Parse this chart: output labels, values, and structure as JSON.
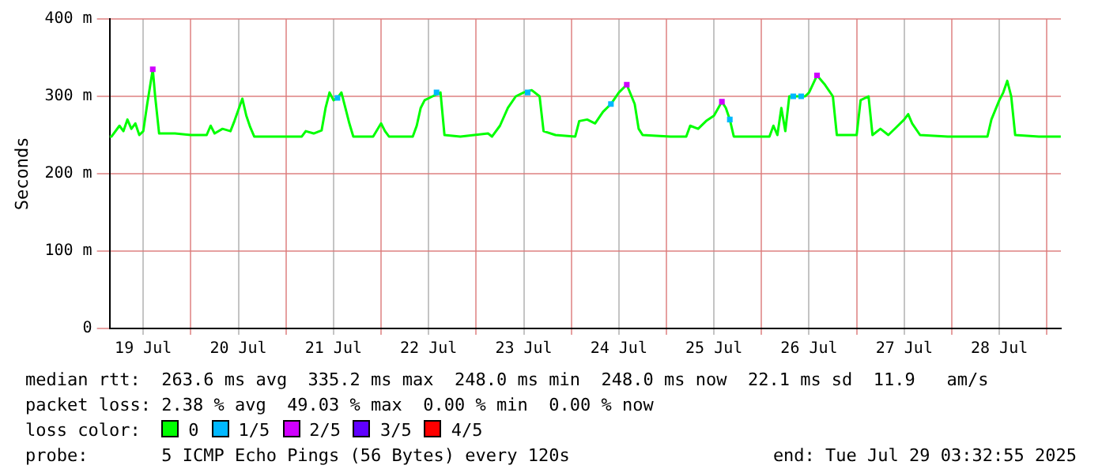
{
  "chart_data": {
    "type": "line",
    "ylabel": "Seconds",
    "legend_title": "loss color:",
    "legend": "bottom",
    "grid": true,
    "marker": "none",
    "line_style": "solid",
    "xlim": [
      "2025-07-19T03:30",
      "2025-07-29T03:32"
    ],
    "xticks": [
      {
        "value": "2025-07-19T12:00",
        "label": "19 Jul"
      },
      {
        "value": "2025-07-20T00:00",
        "label": null
      },
      {
        "value": "2025-07-20T12:00",
        "label": "20 Jul"
      },
      {
        "value": "2025-07-21T00:00",
        "label": null
      },
      {
        "value": "2025-07-21T12:00",
        "label": "21 Jul"
      },
      {
        "value": "2025-07-22T00:00",
        "label": null
      },
      {
        "value": "2025-07-22T12:00",
        "label": "22 Jul"
      },
      {
        "value": "2025-07-23T00:00",
        "label": null
      },
      {
        "value": "2025-07-23T12:00",
        "label": "23 Jul"
      },
      {
        "value": "2025-07-24T00:00",
        "label": null
      },
      {
        "value": "2025-07-24T12:00",
        "label": "24 Jul"
      },
      {
        "value": "2025-07-25T00:00",
        "label": null
      },
      {
        "value": "2025-07-25T12:00",
        "label": "25 Jul"
      },
      {
        "value": "2025-07-26T00:00",
        "label": null
      },
      {
        "value": "2025-07-26T12:00",
        "label": "26 Jul"
      },
      {
        "value": "2025-07-27T00:00",
        "label": null
      },
      {
        "value": "2025-07-27T12:00",
        "label": "27 Jul"
      },
      {
        "value": "2025-07-28T00:00",
        "label": null
      },
      {
        "value": "2025-07-28T12:00",
        "label": "28 Jul"
      },
      {
        "value": "2025-07-29T00:00",
        "label": null
      }
    ],
    "ylim": [
      0,
      400
    ],
    "yticks": [
      0,
      {
        "value": 100,
        "label": "100 m"
      },
      {
        "value": 200,
        "label": "200 m"
      },
      {
        "value": 300,
        "label": "300 m"
      },
      {
        "value": 400,
        "label": "400 m"
      }
    ],
    "series": [
      {
        "name": "0",
        "color": "#00ff00",
        "x": [
          "2025-07-19T03:30",
          "2025-07-19T04:00",
          "2025-07-19T06:00",
          "2025-07-19T07:00",
          "2025-07-19T08:00",
          "2025-07-19T09:00",
          "2025-07-19T10:00",
          "2025-07-19T11:00",
          "2025-07-19T12:00",
          "2025-07-19T13:00",
          "2025-07-19T14:24",
          "2025-07-19T15:00",
          "2025-07-19T16:00",
          "2025-07-19T20:00",
          "2025-07-20T00:00",
          "2025-07-20T04:00",
          "2025-07-20T05:00",
          "2025-07-20T06:00",
          "2025-07-20T08:00",
          "2025-07-20T10:00",
          "2025-07-20T11:00",
          "2025-07-20T13:00",
          "2025-07-20T14:00",
          "2025-07-20T15:00",
          "2025-07-20T16:00",
          "2025-07-20T22:00",
          "2025-07-21T04:00",
          "2025-07-21T05:00",
          "2025-07-21T07:00",
          "2025-07-21T09:00",
          "2025-07-21T10:00",
          "2025-07-21T11:00",
          "2025-07-21T12:00",
          "2025-07-21T13:00",
          "2025-07-21T14:00",
          "2025-07-21T15:00",
          "2025-07-21T16:00",
          "2025-07-21T17:00",
          "2025-07-21T22:00",
          "2025-07-22T00:00",
          "2025-07-22T01:00",
          "2025-07-22T02:00",
          "2025-07-22T08:00",
          "2025-07-22T09:00",
          "2025-07-22T10:00",
          "2025-07-22T11:00",
          "2025-07-22T13:00",
          "2025-07-22T15:00",
          "2025-07-22T16:00",
          "2025-07-22T20:00",
          "2025-07-23T03:00",
          "2025-07-23T04:00",
          "2025-07-23T06:00",
          "2025-07-23T08:00",
          "2025-07-23T10:00",
          "2025-07-23T12:00",
          "2025-07-23T14:00",
          "2025-07-23T16:00",
          "2025-07-23T17:00",
          "2025-07-23T20:00",
          "2025-07-24T01:00",
          "2025-07-24T02:00",
          "2025-07-24T04:00",
          "2025-07-24T06:00",
          "2025-07-24T08:00",
          "2025-07-24T10:00",
          "2025-07-24T12:00",
          "2025-07-24T14:00",
          "2025-07-24T16:00",
          "2025-07-24T17:00",
          "2025-07-24T18:00",
          "2025-07-25T01:00",
          "2025-07-25T05:00",
          "2025-07-25T06:00",
          "2025-07-25T08:00",
          "2025-07-25T10:00",
          "2025-07-25T12:00",
          "2025-07-25T14:00",
          "2025-07-25T15:00",
          "2025-07-25T16:00",
          "2025-07-25T17:00",
          "2025-07-25T22:00",
          "2025-07-26T02:00",
          "2025-07-26T03:00",
          "2025-07-26T04:00",
          "2025-07-26T05:00",
          "2025-07-26T06:00",
          "2025-07-26T07:00",
          "2025-07-26T09:00",
          "2025-07-26T11:00",
          "2025-07-26T12:00",
          "2025-07-26T14:00",
          "2025-07-26T16:00",
          "2025-07-26T18:00",
          "2025-07-26T19:00",
          "2025-07-26T22:00",
          "2025-07-27T00:00",
          "2025-07-27T01:00",
          "2025-07-27T03:00",
          "2025-07-27T04:00",
          "2025-07-27T06:00",
          "2025-07-27T08:00",
          "2025-07-27T10:00",
          "2025-07-27T12:00",
          "2025-07-27T13:00",
          "2025-07-27T14:00",
          "2025-07-27T16:00",
          "2025-07-27T23:00",
          "2025-07-28T09:00",
          "2025-07-28T10:00",
          "2025-07-28T12:00",
          "2025-07-28T13:00",
          "2025-07-28T14:00",
          "2025-07-28T15:00",
          "2025-07-28T16:00",
          "2025-07-28T22:00",
          "2025-07-29T03:30"
        ],
        "values": [
          248,
          248,
          262,
          255,
          270,
          258,
          265,
          250,
          255,
          290,
          335,
          300,
          252,
          252,
          250,
          250,
          262,
          252,
          258,
          255,
          268,
          297,
          275,
          260,
          248,
          248,
          248,
          255,
          252,
          256,
          285,
          305,
          295,
          298,
          305,
          285,
          265,
          248,
          248,
          265,
          255,
          248,
          248,
          262,
          285,
          295,
          300,
          305,
          250,
          248,
          252,
          248,
          262,
          285,
          300,
          305,
          308,
          300,
          255,
          250,
          248,
          268,
          270,
          265,
          280,
          290,
          305,
          315,
          290,
          258,
          250,
          248,
          248,
          262,
          258,
          268,
          275,
          293,
          285,
          270,
          248,
          248,
          248,
          262,
          250,
          285,
          255,
          300,
          300,
          300,
          305,
          327,
          315,
          300,
          250,
          250,
          250,
          295,
          300,
          250,
          258,
          250,
          260,
          270,
          277,
          265,
          250,
          248,
          248,
          270,
          295,
          305,
          320,
          300,
          250,
          248,
          248
        ]
      },
      {
        "name": "1/5",
        "color": "#00b8ff",
        "type": "scatter",
        "marker": "square",
        "x": [
          "2025-07-21T13:00",
          "2025-07-22T14:00",
          "2025-07-23T13:00",
          "2025-07-24T10:00",
          "2025-07-25T16:00",
          "2025-07-26T08:00",
          "2025-07-26T10:00"
        ],
        "values": [
          298,
          305,
          305,
          290,
          270,
          300,
          300
        ]
      },
      {
        "name": "2/5",
        "color": "#d000ff",
        "type": "scatter",
        "marker": "square",
        "x": [
          "2025-07-19T14:24",
          "2025-07-24T14:00",
          "2025-07-25T14:00",
          "2025-07-26T14:00"
        ],
        "values": [
          335,
          315,
          293,
          327
        ]
      },
      {
        "name": "3/5",
        "color": "#6000ff"
      },
      {
        "name": "4/5",
        "color": "#ff0000"
      }
    ],
    "annotations": [
      "median rtt:  263.6 ms avg  335.2 ms max  248.0 ms min  248.0 ms now  22.1 ms sd  11.9   am/s",
      "packet loss: 2.38 % avg  49.03 % max  0.00 % min  0.00 % now",
      "probe:       5 ICMP Echo Pings (56 Bytes) every 120s",
      "end: Tue Jul 29 03:32:55 2025"
    ]
  }
}
